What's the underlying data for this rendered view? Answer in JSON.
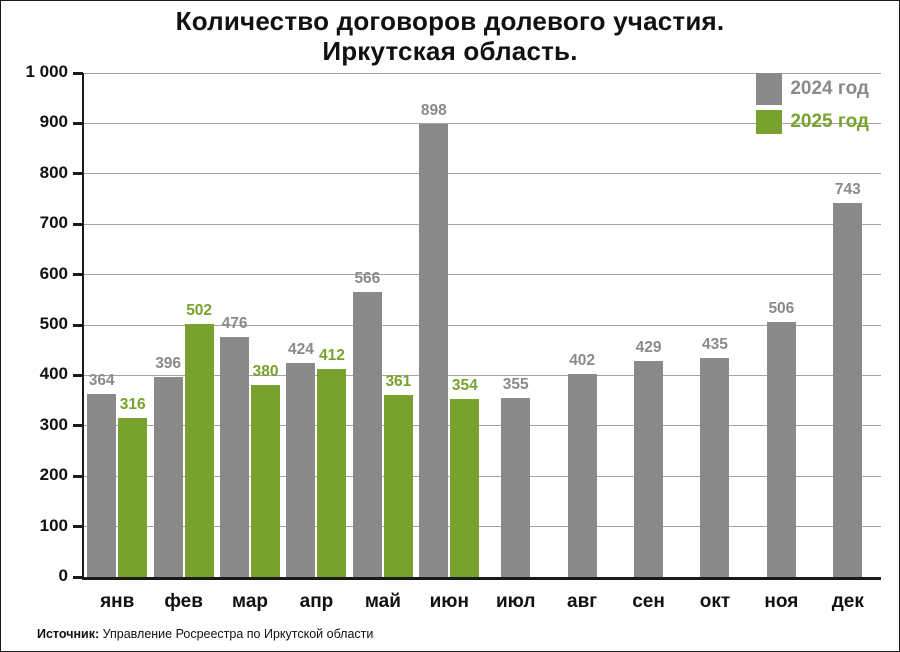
{
  "title_line1": "Количество договоров долевого участия.",
  "title_line2": "Иркутская область.",
  "legend": [
    {
      "label": "2024 год",
      "color": "#8a8a8a"
    },
    {
      "label": "2025 год",
      "color": "#78a22d"
    }
  ],
  "source": {
    "label": "Источник:",
    "text": " Управление Росреестра по Иркутской области"
  },
  "chart_data": {
    "type": "bar",
    "title": "Количество договоров долевого участия. Иркутская область.",
    "categories": [
      "янв",
      "фев",
      "мар",
      "апр",
      "май",
      "июн",
      "июл",
      "авг",
      "сен",
      "окт",
      "ноя",
      "дек"
    ],
    "series": [
      {
        "name": "2024 год",
        "color": "#8a8a8a",
        "values": [
          364,
          396,
          476,
          424,
          566,
          898,
          355,
          402,
          429,
          435,
          506,
          743
        ]
      },
      {
        "name": "2025 год",
        "color": "#78a22d",
        "values": [
          316,
          502,
          380,
          412,
          361,
          354,
          null,
          null,
          null,
          null,
          null,
          null
        ]
      }
    ],
    "xlabel": "",
    "ylabel": "",
    "ylim": [
      0,
      1000
    ],
    "ytick_step": 100,
    "yticklabels": [
      "0",
      "100",
      "200",
      "300",
      "400",
      "500",
      "600",
      "700",
      "800",
      "900",
      "1 000"
    ],
    "grid": true,
    "legend_position": "top-right"
  }
}
